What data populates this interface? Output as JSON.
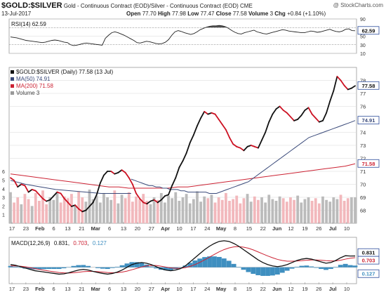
{
  "header": {
    "symbol": "$GOLD:$SILVER",
    "description": "Gold - Continuous Contract (EOD)/Silver - Continuous Contract (EOD) CME",
    "watermark": "@ StockCharts.com",
    "date": "13-Jul-2017",
    "open_label": "Open",
    "open": "77.70",
    "high_label": "High",
    "high": "77.98",
    "low_label": "Low",
    "low": "77.47",
    "close_label": "Close",
    "close": "77.58",
    "volume_label": "Volume",
    "volume": "3",
    "chg_label": "Chg",
    "chg": "+0.84 (+1.10%)"
  },
  "legends": {
    "rsi": "RSI(14) 62.59",
    "main": "$GOLD:$SILVER (Daily) 77.58 (13 Jul)",
    "ma50": "MA(50) 74.91",
    "ma200": "MA(200) 71.58",
    "volume": "Volume 3",
    "macd_name": "MACD(12,26,9)",
    "macd_v1": "0.831",
    "macd_v2": "0.703",
    "macd_v3": "0.127"
  },
  "badges": {
    "rsi": "62.59",
    "price": "77.58",
    "ma50": "74.91",
    "ma200": "71.58",
    "macd1": "0.831",
    "macd2": "0.703",
    "hist": "0.127"
  },
  "colors": {
    "up": "#111111",
    "down": "#cc1122",
    "ma50": "#3a4a7a",
    "ma200": "#cc2233",
    "vol_up": "#bbbbbb",
    "vol_down": "#f2b8bc",
    "hist": "#3f8fc0",
    "macd": "#111111",
    "signal": "#cc2233",
    "rsi_fill": "#333333",
    "grid": "#d8d8d8",
    "badge": "#2a4a9a"
  },
  "chart_data": [
    {
      "type": "line",
      "panel": "RSI",
      "title": "RSI(14) 62.59",
      "ylim": [
        10,
        90
      ],
      "y_ticks": [
        "90",
        "70",
        "50",
        "30",
        "10"
      ],
      "levels": [
        70,
        30
      ],
      "values": [
        48,
        47,
        46,
        44,
        42,
        40,
        39,
        38,
        37,
        36,
        35,
        36,
        38,
        40,
        41,
        40,
        38,
        36,
        35,
        30,
        28,
        29,
        31,
        33,
        34,
        33,
        32,
        31,
        30,
        29,
        45,
        52,
        58,
        60,
        58,
        55,
        52,
        48,
        44,
        40,
        35,
        34,
        36,
        38,
        37,
        35,
        33,
        32,
        33,
        36,
        42,
        52,
        60,
        63,
        61,
        58,
        56,
        54,
        56,
        60,
        65,
        68,
        71,
        73,
        74,
        74,
        75,
        74,
        72,
        68,
        63,
        59,
        56,
        55,
        58,
        60,
        62,
        64,
        60,
        58,
        56,
        55,
        57,
        59,
        61,
        63,
        65,
        64,
        62,
        61,
        60,
        59,
        58,
        58,
        60,
        62,
        61,
        59,
        60,
        62,
        64,
        66,
        63,
        61,
        60,
        62,
        66,
        67,
        63,
        62.59
      ]
    },
    {
      "type": "line",
      "panel": "price",
      "title": "$GOLD:$SILVER (Daily) 77.58 (13 Jul)",
      "ylim": [
        67,
        79
      ],
      "y_ticks": [
        "78",
        "77",
        "76",
        "74",
        "73",
        "72",
        "71",
        "70",
        "69",
        "68"
      ],
      "x_tick_labels": [
        "17",
        "23",
        "Feb",
        "6",
        "13",
        "21",
        "Mar",
        "6",
        "13",
        "20",
        "27",
        "Apr",
        "10",
        "17",
        "24",
        "May",
        "8",
        "15",
        "22",
        "Jun",
        "12",
        "19",
        "26",
        "Jul",
        "10"
      ],
      "series": [
        {
          "name": "$GOLD:$SILVER",
          "values": [
            70.5,
            70.3,
            69.8,
            70.0,
            69.9,
            69.4,
            69.6,
            69.5,
            69.2,
            68.9,
            68.7,
            68.8,
            69.1,
            69.4,
            69.3,
            68.9,
            68.6,
            68.3,
            68.4,
            68.1,
            67.9,
            68.0,
            68.3,
            68.6,
            69.2,
            70.1,
            70.7,
            71.0,
            71.0,
            70.8,
            70.9,
            71.1,
            70.9,
            70.5,
            70.0,
            69.3,
            68.9,
            68.6,
            68.5,
            68.7,
            68.8,
            68.6,
            68.8,
            69.1,
            69.2,
            69.9,
            70.5,
            71.3,
            71.8,
            72.4,
            73.2,
            73.8,
            74.5,
            75.1,
            75.6,
            75.4,
            75.5,
            75.4,
            75.0,
            74.6,
            74.2,
            73.6,
            73.1,
            72.9,
            72.8,
            72.6,
            72.9,
            73.0,
            72.9,
            72.8,
            73.4,
            74.0,
            74.8,
            75.4,
            75.8,
            76.0,
            75.7,
            75.5,
            75.2,
            74.9,
            75.0,
            75.3,
            75.7,
            75.9,
            75.4,
            75.1,
            74.8,
            74.9,
            75.5,
            76.4,
            77.2,
            78.3,
            78.0,
            77.6,
            77.3,
            77.4,
            77.58
          ]
        },
        {
          "name": "MA(50)",
          "values": [
            70.4,
            70.3,
            70.2,
            70.1,
            70.0,
            69.9,
            69.9,
            69.8,
            69.8,
            69.7,
            69.7,
            69.6,
            69.6,
            69.6,
            69.5,
            69.5,
            69.4,
            69.4,
            69.4,
            69.4,
            69.4,
            69.4,
            69.3,
            69.3,
            69.3,
            69.4,
            69.5,
            69.6,
            69.7,
            69.8,
            69.9,
            70.0,
            70.1,
            70.2,
            70.4,
            70.6,
            70.8,
            71.0,
            71.2,
            71.4,
            71.6,
            71.8,
            72.0,
            72.2,
            72.4,
            72.6,
            72.8,
            73.0,
            73.2,
            73.4,
            73.6,
            73.7,
            73.8,
            73.9,
            74.0,
            74.1,
            74.2,
            74.3,
            74.4,
            74.5,
            74.6,
            74.7,
            74.8,
            74.91
          ]
        },
        {
          "name": "MA(200)",
          "values": [
            70.8,
            70.7,
            70.6,
            70.5,
            70.4,
            70.3,
            70.2,
            70.1,
            70.0,
            69.9,
            69.8,
            69.8,
            69.7,
            69.7,
            69.7,
            69.7,
            69.7,
            69.8,
            69.8,
            69.9,
            70.0,
            70.1,
            70.2,
            70.3,
            70.4,
            70.5,
            70.6,
            70.7,
            70.8,
            70.9,
            71.0,
            71.1,
            71.2,
            71.3,
            71.4,
            71.58
          ]
        }
      ],
      "volume": {
        "name": "Volume 3",
        "y_ticks": [
          "6",
          "5",
          "4",
          "3",
          "2",
          "1"
        ],
        "ylim": [
          0,
          6.5
        ],
        "values": [
          3.6,
          2.4,
          3.0,
          2.2,
          3.4,
          2.8,
          2.0,
          3.5,
          2.6,
          3.8,
          2.2,
          3.0,
          2.7,
          3.6,
          2.4,
          3.1,
          2.9,
          3.4,
          2.1,
          3.7,
          3.0,
          2.5,
          3.9,
          2.8,
          3.2,
          2.4,
          3.5,
          3.0,
          2.7,
          3.8,
          2.3,
          3.3,
          2.9,
          3.6,
          2.5,
          3.1,
          2.8,
          3.4,
          2.6,
          2.2,
          3.0,
          2.7,
          3.5,
          2.4,
          3.2,
          2.9,
          3.6,
          2.6,
          3.0,
          3.4,
          2.3,
          2.8,
          3.7,
          2.5,
          3.1,
          2.9,
          3.3,
          2.4,
          3.0,
          2.7,
          3.5,
          2.6,
          2.8,
          3.2,
          2.3,
          2.9,
          3.4,
          2.5,
          3.1,
          2.7,
          3.0,
          2.4,
          3.3,
          2.8,
          2.6,
          3.1,
          2.9,
          2.5,
          3.0,
          2.7,
          3.2,
          2.4,
          2.8,
          3.0,
          2.6,
          2.9,
          2.3,
          3.1,
          2.7,
          2.5,
          3.0,
          2.8,
          3.3,
          2.6,
          2.9,
          3.0,
          3.0
        ]
      }
    },
    {
      "type": "line",
      "panel": "MACD",
      "title": "MACD(12,26,9) 0.831, 0.703, 0.127",
      "ylim": [
        -1.2,
        2.2
      ],
      "series": [
        {
          "name": "MACD",
          "values": [
            0.2,
            0.15,
            0.05,
            -0.05,
            -0.15,
            -0.25,
            -0.3,
            -0.35,
            -0.4,
            -0.45,
            -0.5,
            -0.48,
            -0.4,
            -0.3,
            -0.2,
            -0.15,
            -0.2,
            -0.3,
            -0.38,
            -0.45,
            -0.5,
            -0.45,
            -0.35,
            -0.2,
            0.0,
            0.2,
            0.3,
            0.35,
            0.3,
            0.2,
            0.05,
            -0.1,
            -0.2,
            -0.25,
            -0.2,
            -0.1,
            0.1,
            0.4,
            0.7,
            1.0,
            1.3,
            1.55,
            1.75,
            1.9,
            1.95,
            1.9,
            1.75,
            1.55,
            1.3,
            1.05,
            0.8,
            0.55,
            0.35,
            0.2,
            0.1,
            0.05,
            0.1,
            0.2,
            0.35,
            0.5,
            0.6,
            0.65,
            0.6,
            0.5,
            0.4,
            0.3,
            0.35,
            0.5,
            0.7,
            0.85,
            0.83,
            0.831
          ]
        },
        {
          "name": "Signal",
          "values": [
            0.1,
            0.1,
            0.08,
            0.04,
            -0.02,
            -0.1,
            -0.16,
            -0.22,
            -0.28,
            -0.33,
            -0.38,
            -0.41,
            -0.42,
            -0.4,
            -0.36,
            -0.32,
            -0.3,
            -0.3,
            -0.32,
            -0.35,
            -0.38,
            -0.4,
            -0.39,
            -0.35,
            -0.28,
            -0.18,
            -0.08,
            0.02,
            0.1,
            0.14,
            0.13,
            0.08,
            0.02,
            -0.04,
            -0.07,
            -0.07,
            -0.03,
            0.07,
            0.2,
            0.36,
            0.55,
            0.75,
            0.95,
            1.14,
            1.3,
            1.42,
            1.5,
            1.52,
            1.48,
            1.4,
            1.28,
            1.13,
            0.98,
            0.83,
            0.7,
            0.58,
            0.5,
            0.45,
            0.45,
            0.46,
            0.49,
            0.52,
            0.54,
            0.54,
            0.52,
            0.49,
            0.47,
            0.47,
            0.52,
            0.6,
            0.67,
            0.703
          ]
        }
      ],
      "histogram": [
        0.1,
        0.05,
        -0.03,
        -0.09,
        -0.13,
        -0.15,
        -0.14,
        -0.13,
        -0.12,
        -0.12,
        -0.12,
        -0.07,
        0.02,
        0.1,
        0.16,
        0.17,
        0.1,
        0.0,
        -0.06,
        -0.1,
        -0.12,
        -0.05,
        0.04,
        0.15,
        0.28,
        0.38,
        0.38,
        0.33,
        0.2,
        0.06,
        -0.08,
        -0.18,
        -0.22,
        -0.21,
        -0.13,
        -0.03,
        0.13,
        0.33,
        0.5,
        0.64,
        0.75,
        0.8,
        0.8,
        0.76,
        0.65,
        0.48,
        0.25,
        0.03,
        -0.18,
        -0.35,
        -0.48,
        -0.58,
        -0.63,
        -0.63,
        -0.6,
        -0.53,
        -0.4,
        -0.25,
        -0.1,
        0.04,
        0.11,
        0.13,
        0.06,
        -0.04,
        -0.12,
        -0.19,
        -0.12,
        0.03,
        0.18,
        0.25,
        0.16,
        0.127
      ]
    }
  ]
}
